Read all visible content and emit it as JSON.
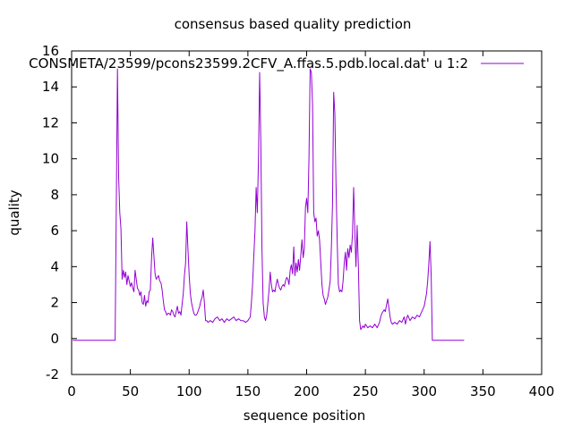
{
  "chart_data": {
    "type": "line",
    "title": "consensus based quality prediction",
    "xlabel": "sequence position",
    "ylabel": "quality",
    "xlim": [
      0,
      400
    ],
    "ylim": [
      -2,
      16
    ],
    "xticks": [
      0,
      50,
      100,
      150,
      200,
      250,
      300,
      350,
      400
    ],
    "yticks": [
      -2,
      0,
      2,
      4,
      6,
      8,
      10,
      12,
      14,
      16
    ],
    "grid": false,
    "legend_position": "top-right",
    "series": [
      {
        "name": "CONSMETA/23599/pcons23599.2CFV_A.ffas.5.pdb.local.dat' u 1:2",
        "color": "#9400d3",
        "points": [
          [
            1,
            -0.1
          ],
          [
            10,
            -0.1
          ],
          [
            20,
            -0.1
          ],
          [
            30,
            -0.1
          ],
          [
            37,
            -0.1
          ],
          [
            38,
            7.4
          ],
          [
            39,
            15.0
          ],
          [
            40,
            9.0
          ],
          [
            41,
            7.0
          ],
          [
            42,
            6.1
          ],
          [
            43,
            3.3
          ],
          [
            44,
            3.8
          ],
          [
            45,
            3.4
          ],
          [
            46,
            3.7
          ],
          [
            47,
            3.0
          ],
          [
            48,
            3.5
          ],
          [
            49,
            3.2
          ],
          [
            50,
            2.9
          ],
          [
            51,
            3.1
          ],
          [
            52,
            2.8
          ],
          [
            53,
            2.6
          ],
          [
            54,
            3.8
          ],
          [
            55,
            3.3
          ],
          [
            56,
            2.8
          ],
          [
            57,
            2.7
          ],
          [
            58,
            2.4
          ],
          [
            59,
            2.6
          ],
          [
            60,
            2.0
          ],
          [
            61,
            1.9
          ],
          [
            62,
            2.4
          ],
          [
            63,
            1.8
          ],
          [
            64,
            2.1
          ],
          [
            65,
            2.0
          ],
          [
            66,
            2.6
          ],
          [
            67,
            2.7
          ],
          [
            68,
            4.5
          ],
          [
            69,
            5.6
          ],
          [
            70,
            4.6
          ],
          [
            71,
            3.6
          ],
          [
            72,
            3.3
          ],
          [
            73,
            3.4
          ],
          [
            74,
            3.5
          ],
          [
            75,
            3.2
          ],
          [
            76,
            3.1
          ],
          [
            77,
            2.7
          ],
          [
            78,
            2.1
          ],
          [
            79,
            1.6
          ],
          [
            80,
            1.5
          ],
          [
            81,
            1.3
          ],
          [
            82,
            1.4
          ],
          [
            83,
            1.4
          ],
          [
            84,
            1.3
          ],
          [
            85,
            1.6
          ],
          [
            86,
            1.5
          ],
          [
            87,
            1.3
          ],
          [
            88,
            1.2
          ],
          [
            89,
            1.5
          ],
          [
            90,
            1.8
          ],
          [
            91,
            1.4
          ],
          [
            92,
            1.5
          ],
          [
            93,
            1.3
          ],
          [
            94,
            1.9
          ],
          [
            95,
            2.5
          ],
          [
            96,
            3.5
          ],
          [
            97,
            4.2
          ],
          [
            98,
            6.5
          ],
          [
            99,
            5.0
          ],
          [
            100,
            3.5
          ],
          [
            101,
            2.5
          ],
          [
            102,
            2.0
          ],
          [
            103,
            1.7
          ],
          [
            104,
            1.4
          ],
          [
            105,
            1.3
          ],
          [
            106,
            1.3
          ],
          [
            107,
            1.4
          ],
          [
            108,
            1.6
          ],
          [
            109,
            1.8
          ],
          [
            110,
            2.1
          ],
          [
            111,
            2.3
          ],
          [
            112,
            2.7
          ],
          [
            113,
            2.0
          ],
          [
            114,
            1.0
          ],
          [
            115,
            1.0
          ],
          [
            116,
            0.9
          ],
          [
            118,
            1.0
          ],
          [
            120,
            0.9
          ],
          [
            122,
            1.1
          ],
          [
            124,
            1.2
          ],
          [
            126,
            1.0
          ],
          [
            128,
            1.1
          ],
          [
            130,
            0.9
          ],
          [
            132,
            1.1
          ],
          [
            134,
            1.0
          ],
          [
            136,
            1.1
          ],
          [
            138,
            1.2
          ],
          [
            140,
            1.0
          ],
          [
            142,
            1.1
          ],
          [
            144,
            1.0
          ],
          [
            146,
            1.0
          ],
          [
            148,
            0.9
          ],
          [
            150,
            1.0
          ],
          [
            152,
            1.2
          ],
          [
            153,
            2.0
          ],
          [
            154,
            3.0
          ],
          [
            155,
            4.5
          ],
          [
            156,
            6.0
          ],
          [
            157,
            8.4
          ],
          [
            158,
            7.0
          ],
          [
            159,
            10.0
          ],
          [
            160,
            14.8
          ],
          [
            161,
            11.0
          ],
          [
            162,
            5.0
          ],
          [
            163,
            2.0
          ],
          [
            164,
            1.2
          ],
          [
            165,
            1.0
          ],
          [
            166,
            1.3
          ],
          [
            167,
            2.0
          ],
          [
            168,
            2.7
          ],
          [
            169,
            3.7
          ],
          [
            170,
            3.0
          ],
          [
            171,
            2.6
          ],
          [
            172,
            2.7
          ],
          [
            173,
            2.6
          ],
          [
            174,
            3.0
          ],
          [
            175,
            3.3
          ],
          [
            176,
            3.0
          ],
          [
            177,
            2.8
          ],
          [
            178,
            2.7
          ],
          [
            179,
            2.9
          ],
          [
            180,
            3.0
          ],
          [
            181,
            2.9
          ],
          [
            182,
            3.2
          ],
          [
            183,
            3.4
          ],
          [
            184,
            3.3
          ],
          [
            185,
            3.0
          ],
          [
            186,
            3.8
          ],
          [
            187,
            4.1
          ],
          [
            188,
            3.6
          ],
          [
            189,
            5.1
          ],
          [
            190,
            3.5
          ],
          [
            191,
            4.2
          ],
          [
            192,
            3.7
          ],
          [
            193,
            4.4
          ],
          [
            194,
            3.8
          ],
          [
            195,
            4.6
          ],
          [
            196,
            5.5
          ],
          [
            197,
            4.5
          ],
          [
            198,
            5.0
          ],
          [
            199,
            7.3
          ],
          [
            200,
            7.8
          ],
          [
            201,
            7.0
          ],
          [
            202,
            10.0
          ],
          [
            203,
            15.0
          ],
          [
            204,
            14.8
          ],
          [
            205,
            13.0
          ],
          [
            206,
            7.0
          ],
          [
            207,
            6.5
          ],
          [
            208,
            6.7
          ],
          [
            209,
            5.7
          ],
          [
            210,
            6.0
          ],
          [
            211,
            5.5
          ],
          [
            212,
            4.2
          ],
          [
            213,
            3.0
          ],
          [
            214,
            2.4
          ],
          [
            215,
            2.2
          ],
          [
            216,
            1.9
          ],
          [
            217,
            2.1
          ],
          [
            218,
            2.3
          ],
          [
            219,
            2.7
          ],
          [
            220,
            3.2
          ],
          [
            221,
            5.0
          ],
          [
            222,
            7.5
          ],
          [
            223,
            13.7
          ],
          [
            224,
            12.5
          ],
          [
            225,
            8.6
          ],
          [
            226,
            5.5
          ],
          [
            227,
            3.0
          ],
          [
            228,
            2.6
          ],
          [
            229,
            2.7
          ],
          [
            230,
            2.6
          ],
          [
            231,
            3.2
          ],
          [
            232,
            4.2
          ],
          [
            233,
            4.8
          ],
          [
            234,
            3.8
          ],
          [
            235,
            5.0
          ],
          [
            236,
            4.5
          ],
          [
            237,
            5.2
          ],
          [
            238,
            4.8
          ],
          [
            239,
            5.8
          ],
          [
            240,
            8.4
          ],
          [
            241,
            6.0
          ],
          [
            242,
            4.0
          ],
          [
            243,
            6.3
          ],
          [
            244,
            4.0
          ],
          [
            245,
            1.0
          ],
          [
            246,
            0.5
          ],
          [
            247,
            0.6
          ],
          [
            248,
            0.7
          ],
          [
            249,
            0.6
          ],
          [
            250,
            0.8
          ],
          [
            252,
            0.6
          ],
          [
            254,
            0.7
          ],
          [
            256,
            0.6
          ],
          [
            258,
            0.8
          ],
          [
            260,
            0.6
          ],
          [
            262,
            0.9
          ],
          [
            263,
            1.2
          ],
          [
            264,
            1.4
          ],
          [
            265,
            1.5
          ],
          [
            266,
            1.6
          ],
          [
            267,
            1.5
          ],
          [
            268,
            1.9
          ],
          [
            269,
            2.2
          ],
          [
            270,
            1.7
          ],
          [
            271,
            1.2
          ],
          [
            272,
            0.9
          ],
          [
            273,
            0.8
          ],
          [
            275,
            0.9
          ],
          [
            277,
            0.8
          ],
          [
            279,
            1.0
          ],
          [
            281,
            0.9
          ],
          [
            283,
            1.2
          ],
          [
            284,
            0.8
          ],
          [
            285,
            1.1
          ],
          [
            286,
            1.3
          ],
          [
            288,
            1.0
          ],
          [
            290,
            1.2
          ],
          [
            292,
            1.1
          ],
          [
            294,
            1.3
          ],
          [
            296,
            1.2
          ],
          [
            298,
            1.5
          ],
          [
            300,
            1.8
          ],
          [
            302,
            2.5
          ],
          [
            303,
            3.2
          ],
          [
            304,
            4.2
          ],
          [
            305,
            5.4
          ],
          [
            306,
            3.5
          ],
          [
            307,
            -0.1
          ],
          [
            315,
            -0.1
          ],
          [
            325,
            -0.1
          ],
          [
            334,
            -0.1
          ]
        ]
      }
    ]
  }
}
